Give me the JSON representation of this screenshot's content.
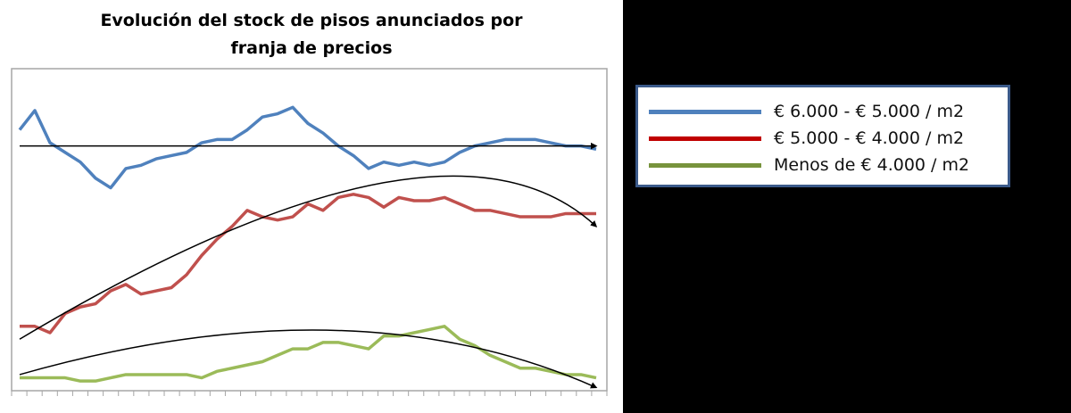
{
  "chart_data": {
    "type": "line",
    "title": "Evolución del stock de pisos anunciados por franja de precios",
    "title_lines": [
      "Evolución del stock de pisos anunciados por",
      "franja de precios"
    ],
    "xlabel": "",
    "ylabel": "",
    "x_tick_count": 39,
    "x_tick_labels": [],
    "y_tick_labels": [],
    "value_scale_note": "relative position in plot area, 0 = bottom, 100 = top (no axis labels shown)",
    "ylim": [
      0,
      100
    ],
    "grid": false,
    "legend_position": "right",
    "x": [
      1,
      2,
      3,
      4,
      5,
      6,
      7,
      8,
      9,
      10,
      11,
      12,
      13,
      14,
      15,
      16,
      17,
      18,
      19,
      20,
      21,
      22,
      23,
      24,
      25,
      26,
      27,
      28,
      29,
      30,
      31,
      32,
      33,
      34,
      35,
      36,
      37,
      38,
      39
    ],
    "series": [
      {
        "name": "€ 6.000 - € 5.000 / m2",
        "color": "#4f81bd",
        "values": [
          81,
          87,
          77,
          74,
          71,
          66,
          63,
          69,
          70,
          72,
          73,
          74,
          77,
          78,
          78,
          81,
          85,
          86,
          88,
          83,
          80,
          76,
          73,
          69,
          71,
          70,
          71,
          70,
          71,
          74,
          76,
          77,
          78,
          78,
          78,
          77,
          76,
          76,
          75
        ],
        "trend": {
          "type": "linear",
          "color": "#000000",
          "arrow": true,
          "start": 76,
          "end": 76
        }
      },
      {
        "name": "€ 5.000 - € 4.000 / m2",
        "color": "#c0504d",
        "values": [
          20,
          20,
          18,
          24,
          26,
          27,
          31,
          33,
          30,
          31,
          32,
          36,
          42,
          47,
          51,
          56,
          54,
          53,
          54,
          58,
          56,
          60,
          61,
          60,
          57,
          60,
          59,
          59,
          60,
          58,
          56,
          56,
          55,
          54,
          54,
          54,
          55,
          55,
          55
        ],
        "trend": {
          "type": "polynomial",
          "color": "#000000",
          "arrow": true,
          "start": 16,
          "peak": 60,
          "end": 51
        }
      },
      {
        "name": "Menos de € 4.000 / m2",
        "color": "#9bbb59",
        "values": [
          4,
          4,
          4,
          4,
          3,
          3,
          4,
          5,
          5,
          5,
          5,
          5,
          4,
          6,
          7,
          8,
          9,
          11,
          13,
          13,
          15,
          15,
          14,
          13,
          17,
          17,
          18,
          19,
          20,
          16,
          14,
          11,
          9,
          7,
          7,
          6,
          5,
          5,
          4
        ],
        "trend": {
          "type": "polynomial",
          "color": "#000000",
          "arrow": true,
          "start": 5,
          "peak": 16,
          "end": 1
        }
      }
    ]
  },
  "legend": {
    "items": [
      {
        "label": "€ 6.000 - € 5.000 / m2",
        "color": "#4f81bd"
      },
      {
        "label": "€ 5.000 - € 4.000 / m2",
        "color": "#c00000"
      },
      {
        "label": "Menos de € 4.000 / m2",
        "color": "#77933c"
      }
    ],
    "border_color": "#3b5a8a"
  }
}
